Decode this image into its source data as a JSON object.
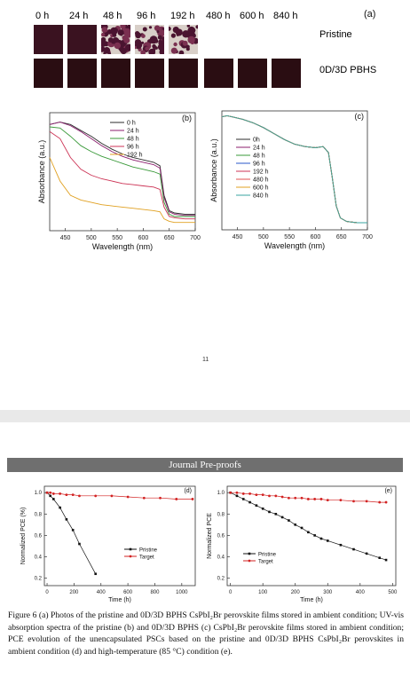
{
  "photo_panel": {
    "panel_label": "(a)",
    "time_labels": [
      "0 h",
      "24 h",
      "48 h",
      "96 h",
      "192 h",
      "480 h",
      "600 h",
      "840 h"
    ],
    "row_pristine": "Pristine",
    "row_pbhs": "0D/3D PBHS"
  },
  "page_number": "11",
  "banner": "Journal Pre-proofs",
  "caption": "Figure 6 (a) Photos of the pristine and 0D/3D BPHS CsPbI₂Br perovskite films stored in ambient condition; UV-vis absorption spectra of the pristine (b) and 0D/3D BPHS (c) CsPbI₂Br perovskite films stored in ambient condition; PCE evolution of the unencapsulated PSCs based on the pristine and 0D/3D BPHS CsPbI₂Br perovskites in ambient condition (d) and high-temperature (85 °C) condition (e).",
  "colors": {
    "pristine_film": "#3a1220",
    "pbhs_film": "#2a0d12",
    "pristine_line": "#111111",
    "target_line": "#d22222"
  },
  "chart_data": [
    {
      "id": "b",
      "type": "line",
      "label": "(b)",
      "xlabel": "Wavelength (nm)",
      "ylabel": "Absorbance (a.u.)",
      "xlim": [
        420,
        700
      ],
      "ylim": [
        0,
        1
      ],
      "xticks": [
        "450",
        "500",
        "550",
        "600",
        "650",
        "700"
      ],
      "legend": "top-right",
      "series": [
        {
          "name": "0 h",
          "color": "#2b2b2b",
          "x": [
            420,
            440,
            460,
            480,
            500,
            520,
            540,
            560,
            580,
            600,
            620,
            632,
            640,
            650,
            660,
            680,
            700
          ],
          "y": [
            0.9,
            0.92,
            0.9,
            0.85,
            0.8,
            0.74,
            0.69,
            0.65,
            0.62,
            0.6,
            0.58,
            0.55,
            0.3,
            0.17,
            0.15,
            0.14,
            0.14
          ]
        },
        {
          "name": "24 h",
          "color": "#8b1e6e",
          "x": [
            420,
            440,
            460,
            480,
            500,
            520,
            540,
            560,
            580,
            600,
            620,
            632,
            640,
            650,
            660,
            680,
            700
          ],
          "y": [
            0.9,
            0.92,
            0.89,
            0.84,
            0.78,
            0.72,
            0.67,
            0.63,
            0.6,
            0.58,
            0.56,
            0.53,
            0.28,
            0.16,
            0.14,
            0.13,
            0.13
          ]
        },
        {
          "name": "48 h",
          "color": "#3a9a3a",
          "x": [
            420,
            440,
            460,
            480,
            500,
            520,
            540,
            560,
            580,
            600,
            620,
            632,
            640,
            650,
            660,
            680,
            700
          ],
          "y": [
            0.88,
            0.87,
            0.8,
            0.72,
            0.67,
            0.63,
            0.6,
            0.57,
            0.54,
            0.52,
            0.5,
            0.48,
            0.24,
            0.14,
            0.12,
            0.12,
            0.12
          ]
        },
        {
          "name": "96 h",
          "color": "#cc3355",
          "x": [
            420,
            440,
            460,
            480,
            500,
            520,
            540,
            560,
            580,
            600,
            620,
            632,
            640,
            650,
            660,
            680,
            700
          ],
          "y": [
            0.84,
            0.78,
            0.62,
            0.52,
            0.47,
            0.44,
            0.42,
            0.4,
            0.39,
            0.38,
            0.37,
            0.35,
            0.2,
            0.12,
            0.11,
            0.1,
            0.1
          ]
        },
        {
          "name": "192 h",
          "color": "#e0a020",
          "x": [
            420,
            440,
            460,
            480,
            500,
            520,
            540,
            560,
            580,
            600,
            620,
            632,
            640,
            650,
            660,
            680,
            700
          ],
          "y": [
            0.62,
            0.42,
            0.3,
            0.26,
            0.24,
            0.22,
            0.21,
            0.2,
            0.19,
            0.18,
            0.17,
            0.16,
            0.1,
            0.08,
            0.07,
            0.07,
            0.07
          ]
        }
      ]
    },
    {
      "id": "c",
      "type": "line",
      "label": "(c)",
      "xlabel": "Wavelength (nm)",
      "ylabel": "Absorbance (a.u.)",
      "xlim": [
        420,
        700
      ],
      "ylim": [
        0,
        1
      ],
      "xticks": [
        "450",
        "500",
        "550",
        "600",
        "650",
        "700"
      ],
      "legend": "top-left",
      "series": [
        {
          "name": "0h",
          "color": "#2b2b2b",
          "x": [
            420,
            430,
            440,
            460,
            480,
            500,
            520,
            540,
            560,
            580,
            600,
            615,
            625,
            632,
            640,
            648,
            660,
            680,
            700
          ],
          "y": [
            0.95,
            0.96,
            0.95,
            0.93,
            0.9,
            0.86,
            0.81,
            0.76,
            0.72,
            0.7,
            0.69,
            0.7,
            0.65,
            0.45,
            0.2,
            0.1,
            0.07,
            0.06,
            0.06
          ]
        },
        {
          "name": "24 h",
          "color": "#8b1e6e",
          "x": [
            420,
            430,
            440,
            460,
            480,
            500,
            520,
            540,
            560,
            580,
            600,
            615,
            625,
            632,
            640,
            648,
            660,
            680,
            700
          ],
          "y": [
            0.95,
            0.96,
            0.95,
            0.93,
            0.9,
            0.86,
            0.81,
            0.76,
            0.72,
            0.7,
            0.69,
            0.7,
            0.65,
            0.45,
            0.2,
            0.1,
            0.07,
            0.06,
            0.06
          ]
        },
        {
          "name": "48 h",
          "color": "#3a9a3a",
          "x": [
            420,
            430,
            440,
            460,
            480,
            500,
            520,
            540,
            560,
            580,
            600,
            615,
            625,
            632,
            640,
            648,
            660,
            680,
            700
          ],
          "y": [
            0.95,
            0.96,
            0.95,
            0.93,
            0.9,
            0.86,
            0.81,
            0.76,
            0.72,
            0.7,
            0.69,
            0.7,
            0.65,
            0.45,
            0.2,
            0.1,
            0.07,
            0.06,
            0.06
          ]
        },
        {
          "name": "96 h",
          "color": "#2a57c8",
          "x": [
            420,
            430,
            440,
            460,
            480,
            500,
            520,
            540,
            560,
            580,
            600,
            615,
            625,
            632,
            640,
            648,
            660,
            680,
            700
          ],
          "y": [
            0.95,
            0.96,
            0.95,
            0.93,
            0.9,
            0.86,
            0.81,
            0.76,
            0.72,
            0.7,
            0.69,
            0.7,
            0.65,
            0.45,
            0.2,
            0.1,
            0.07,
            0.06,
            0.06
          ]
        },
        {
          "name": "192 h",
          "color": "#cc3355",
          "x": [
            420,
            430,
            440,
            460,
            480,
            500,
            520,
            540,
            560,
            580,
            600,
            615,
            625,
            632,
            640,
            648,
            660,
            680,
            700
          ],
          "y": [
            0.95,
            0.96,
            0.95,
            0.93,
            0.9,
            0.86,
            0.81,
            0.76,
            0.72,
            0.7,
            0.69,
            0.7,
            0.65,
            0.45,
            0.2,
            0.1,
            0.07,
            0.06,
            0.06
          ]
        },
        {
          "name": "480 h",
          "color": "#e05050",
          "x": [
            420,
            430,
            440,
            460,
            480,
            500,
            520,
            540,
            560,
            580,
            600,
            615,
            625,
            632,
            640,
            648,
            660,
            680,
            700
          ],
          "y": [
            0.95,
            0.96,
            0.95,
            0.93,
            0.9,
            0.86,
            0.81,
            0.76,
            0.72,
            0.7,
            0.69,
            0.7,
            0.65,
            0.45,
            0.2,
            0.1,
            0.07,
            0.06,
            0.06
          ]
        },
        {
          "name": "600 h",
          "color": "#e0a020",
          "x": [
            420,
            430,
            440,
            460,
            480,
            500,
            520,
            540,
            560,
            580,
            600,
            615,
            625,
            632,
            640,
            648,
            660,
            680,
            700
          ],
          "y": [
            0.95,
            0.96,
            0.95,
            0.93,
            0.9,
            0.86,
            0.81,
            0.76,
            0.72,
            0.7,
            0.69,
            0.7,
            0.65,
            0.45,
            0.2,
            0.1,
            0.07,
            0.06,
            0.06
          ]
        },
        {
          "name": "840 h",
          "color": "#3aa6a0",
          "x": [
            420,
            430,
            440,
            460,
            480,
            500,
            520,
            540,
            560,
            580,
            600,
            615,
            625,
            632,
            640,
            648,
            660,
            680,
            700
          ],
          "y": [
            0.95,
            0.96,
            0.95,
            0.93,
            0.9,
            0.86,
            0.81,
            0.76,
            0.72,
            0.7,
            0.69,
            0.7,
            0.65,
            0.45,
            0.2,
            0.1,
            0.07,
            0.06,
            0.06
          ]
        }
      ]
    },
    {
      "id": "d",
      "type": "line",
      "label": "(d)",
      "xlabel": "Time (h)",
      "ylabel": "Normalized PCE (%)",
      "xlim": [
        -20,
        1100
      ],
      "ylim": [
        0.13,
        1.06
      ],
      "xticks": [
        "0",
        "200",
        "400",
        "600",
        "800",
        "1000"
      ],
      "xtick_values": [
        0,
        200,
        400,
        600,
        800,
        1000
      ],
      "yticks": [
        "0.2",
        "0.4",
        "0.6",
        "0.8",
        "1.0"
      ],
      "ytick_values": [
        0.2,
        0.4,
        0.6,
        0.8,
        1.0
      ],
      "legend": "center-right",
      "series": [
        {
          "name": "Pristine",
          "color": "#111111",
          "marker": "square",
          "x": [
            0,
            24,
            48,
            96,
            144,
            192,
            240,
            360
          ],
          "y": [
            1.0,
            0.97,
            0.94,
            0.86,
            0.75,
            0.65,
            0.52,
            0.24
          ]
        },
        {
          "name": "Target",
          "color": "#d22222",
          "marker": "circle",
          "x": [
            0,
            24,
            48,
            96,
            144,
            192,
            240,
            360,
            480,
            600,
            720,
            840,
            960,
            1080
          ],
          "y": [
            1.0,
            1.0,
            0.99,
            0.99,
            0.98,
            0.98,
            0.97,
            0.97,
            0.97,
            0.96,
            0.95,
            0.95,
            0.94,
            0.94
          ]
        }
      ]
    },
    {
      "id": "e",
      "type": "line",
      "label": "(e)",
      "xlabel": "Time (h)",
      "ylabel": "Normalized PCE",
      "xlim": [
        -10,
        510
      ],
      "ylim": [
        0.13,
        1.06
      ],
      "xticks": [
        "0",
        "100",
        "200",
        "300",
        "400",
        "500"
      ],
      "xtick_values": [
        0,
        100,
        200,
        300,
        400,
        500
      ],
      "yticks": [
        "0.2",
        "0.4",
        "0.6",
        "0.8",
        "1.0"
      ],
      "ytick_values": [
        0.2,
        0.4,
        0.6,
        0.8,
        1.0
      ],
      "legend": "bottom-left",
      "series": [
        {
          "name": "Pristine",
          "color": "#111111",
          "marker": "square",
          "x": [
            0,
            20,
            40,
            60,
            80,
            100,
            120,
            140,
            160,
            180,
            200,
            220,
            240,
            260,
            280,
            300,
            340,
            380,
            420,
            460,
            480
          ],
          "y": [
            1.0,
            0.97,
            0.94,
            0.91,
            0.88,
            0.85,
            0.82,
            0.8,
            0.77,
            0.74,
            0.7,
            0.67,
            0.63,
            0.6,
            0.57,
            0.55,
            0.51,
            0.47,
            0.43,
            0.39,
            0.37
          ]
        },
        {
          "name": "Target",
          "color": "#d22222",
          "marker": "circle",
          "x": [
            0,
            20,
            40,
            60,
            80,
            100,
            120,
            140,
            160,
            180,
            200,
            220,
            240,
            260,
            280,
            300,
            340,
            380,
            420,
            460,
            480
          ],
          "y": [
            1.0,
            1.0,
            0.99,
            0.99,
            0.98,
            0.98,
            0.97,
            0.97,
            0.96,
            0.95,
            0.95,
            0.95,
            0.94,
            0.94,
            0.94,
            0.93,
            0.93,
            0.92,
            0.92,
            0.91,
            0.91
          ]
        }
      ]
    }
  ]
}
